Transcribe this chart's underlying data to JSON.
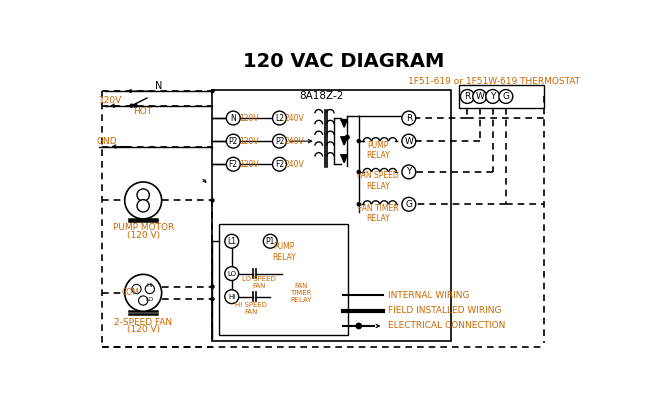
{
  "title": "120 VAC DIAGRAM",
  "title_color": "#1a1a1a",
  "orange_color": "#cc6600",
  "black_color": "#000000",
  "bg_color": "#ffffff",
  "thermostat_label": "1F51-619 or 1F51W-619 THERMOSTAT",
  "box8a_label": "8A18Z-2",
  "pump_motor_label": "PUMP MOTOR",
  "pump_motor_label2": "(120 V)",
  "fan_label": "2-SPEED FAN",
  "fan_label2": "(120 V)",
  "legend_internal": "INTERNAL WIRING",
  "legend_field": "FIELD INSTALLED WIRING",
  "legend_elec": "ELECTRICAL CONNECTION",
  "thermostat_terminals": [
    "R",
    "W",
    "Y",
    "G"
  ],
  "left_terms": [
    "N",
    "P2",
    "F2"
  ],
  "right_terms": [
    "L2",
    "P2",
    "F2"
  ],
  "relay_terms": [
    "W",
    "Y",
    "G"
  ],
  "relay_labels": [
    "PUMP\nRELAY",
    "FAN SPEED\nRELAY",
    "FAN TIMER\nRELAY"
  ]
}
